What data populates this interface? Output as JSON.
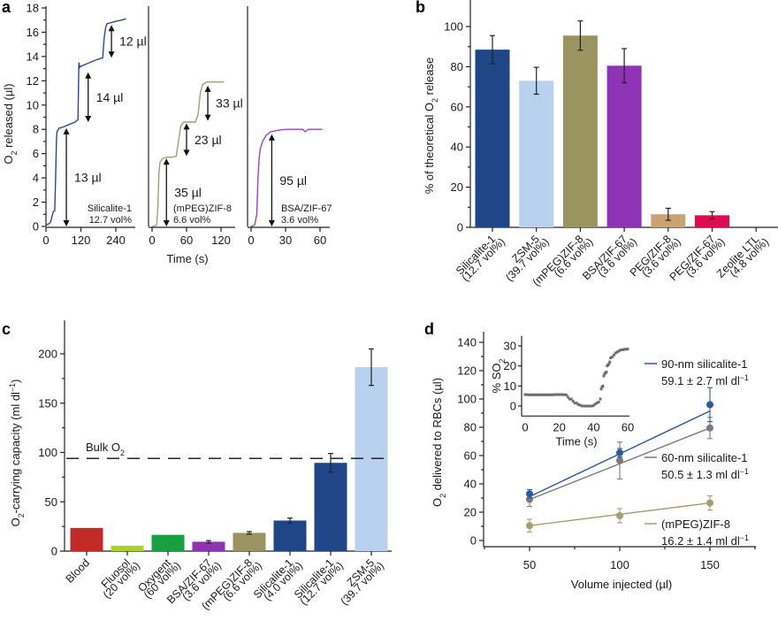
{
  "chart_data": [
    {
      "panel": "a",
      "type": "line",
      "ylabel": "O2 released (µl)",
      "ylabel_main": "O",
      "ylabel_sub": "2",
      "ylabel_rest": " released (µl)",
      "xlabel": "Time (s)",
      "ylim": [
        0,
        18
      ],
      "yticks": [
        0,
        2,
        4,
        6,
        8,
        10,
        12,
        14,
        16,
        18
      ],
      "subplots": [
        {
          "name": "Silicalite-1",
          "label_line1": "Silicalite-1",
          "label_line2": "12.7 vol%",
          "color": "#2b4a8c",
          "xlim": [
            0,
            290
          ],
          "xticks": [
            0,
            120,
            240
          ],
          "x": [
            0,
            15,
            25,
            30,
            33,
            36,
            38,
            45,
            60,
            80,
            100,
            110,
            113,
            116,
            120,
            140,
            170,
            195,
            200,
            205,
            210,
            225,
            240,
            260,
            275
          ],
          "y": [
            0.1,
            0.3,
            1.2,
            1.3,
            4,
            7.2,
            7.8,
            8.1,
            8.2,
            8.4,
            8.6,
            8.8,
            13.5,
            13.1,
            13.2,
            13.4,
            13.7,
            13.9,
            15.5,
            16.4,
            16.7,
            16.8,
            16.9,
            17.0,
            17.1
          ],
          "annotations": [
            {
              "text": "13 µl",
              "from": 0,
              "to": 8.1,
              "x": 70
            },
            {
              "text": "14 µl",
              "from": 8.6,
              "to": 12.7,
              "x": 145
            },
            {
              "text": "12 µl",
              "from": 13.9,
              "to": 16.6,
              "x": 225
            }
          ]
        },
        {
          "name": "(mPEG)ZIF-8",
          "label_line1": "(mPEG)ZIF-8",
          "label_line2": "6.6 vol%",
          "color": "#a49f70",
          "xlim": [
            0,
            150
          ],
          "xticks": [
            0,
            60,
            120
          ],
          "x": [
            0,
            8,
            10,
            12,
            14,
            18,
            25,
            35,
            42,
            46,
            50,
            55,
            65,
            75,
            80,
            84,
            88,
            95,
            110,
            125
          ],
          "y": [
            0,
            0.1,
            1.5,
            4.5,
            5.3,
            5.6,
            5.7,
            5.7,
            5.8,
            7,
            8.3,
            8.6,
            8.6,
            8.6,
            9.2,
            11,
            11.7,
            11.9,
            11.9,
            11.9
          ],
          "annotations": [
            {
              "text": "35 µl",
              "from": 0,
              "to": 5.6,
              "x": 25
            },
            {
              "text": "23 µl",
              "from": 5.8,
              "to": 8.5,
              "x": 60
            },
            {
              "text": "33 µl",
              "from": 8.7,
              "to": 11.6,
              "x": 97
            }
          ]
        },
        {
          "name": "BSA/ZIF-67",
          "label_line1": "BSA/ZIF-67",
          "label_line2": "3.6 vol%",
          "color": "#9b44c4",
          "xlim": [
            0,
            70
          ],
          "xticks": [
            0,
            30,
            60
          ],
          "x": [
            0,
            3,
            5,
            6,
            7,
            8,
            10,
            13,
            17,
            22,
            30,
            40,
            45,
            47,
            50,
            55,
            62
          ],
          "y": [
            0,
            0.1,
            1,
            4,
            5.6,
            6.4,
            7.0,
            7.5,
            7.8,
            7.9,
            8.0,
            8.0,
            8.0,
            7.8,
            8.0,
            8.0,
            8.0
          ],
          "annotations": [
            {
              "text": "95 µl",
              "from": 0,
              "to": 7.6,
              "x": 18
            }
          ]
        }
      ]
    },
    {
      "panel": "b",
      "type": "bar",
      "ylabel_pre": "% of theoretical O",
      "ylabel_sub": "2",
      "ylabel_post": " release",
      "ylim": [
        0,
        110
      ],
      "yticks": [
        0,
        20,
        40,
        60,
        80,
        100
      ],
      "categories": [
        {
          "l1": "Silicalite-1",
          "l2": "(12.7 vol%)"
        },
        {
          "l1": "ZSM-5",
          "l2": "(39.7 vol%)"
        },
        {
          "l1": "(mPEG)ZIF-8",
          "l2": "(6.6 vol%)"
        },
        {
          "l1": "BSA/ZIF-67",
          "l2": "(3.6 vol%)"
        },
        {
          "l1": "PEG/ZIF-8",
          "l2": "(3.6 vol%)"
        },
        {
          "l1": "PEG/ZIF-67",
          "l2": "(3.6 vol%)"
        },
        {
          "l1": "Zeolite LTL",
          "l2": "(4.8 vol%)"
        }
      ],
      "values": [
        88.5,
        73,
        95.5,
        80.5,
        6.5,
        6,
        0
      ],
      "errors": [
        7,
        6.7,
        7.3,
        8.5,
        3,
        1.8,
        0
      ],
      "colors": [
        "#1f4788",
        "#b8d1ee",
        "#9a9460",
        "#8e33b6",
        "#caa273",
        "#dd0c50",
        "#cccccc"
      ]
    },
    {
      "panel": "c",
      "type": "bar",
      "ylabel_pre": "O",
      "ylabel_sub": "2",
      "ylabel_post": "-carrying capacity (ml dl",
      "ylabel_sup": "−1",
      "ylabel_end": ")",
      "ylim": [
        0,
        225
      ],
      "yticks": [
        0,
        50,
        100,
        150,
        200
      ],
      "reference_line": {
        "label": "Bulk O",
        "label_sub": "2",
        "value": 94
      },
      "categories": [
        {
          "l1": "Blood",
          "l2": ""
        },
        {
          "l1": "Fluosol",
          "l2": "(20 vol%)"
        },
        {
          "l1": "Oxygent",
          "l2": "(60 vol%)"
        },
        {
          "l1": "BSA/ZIF-67",
          "l2": "(3.6 vol%)"
        },
        {
          "l1": "(mPEG)ZIF-8",
          "l2": "(6.6 vol%)"
        },
        {
          "l1": "Silicalite-1",
          "l2": "(4.0 vol%)"
        },
        {
          "l1": "Silicalite-1",
          "l2": "(12.7 vol%)"
        },
        {
          "l1": "ZSM-5",
          "l2": "(39.7 vol%)"
        }
      ],
      "values": [
        23.5,
        5.5,
        16.5,
        9.5,
        18.5,
        31,
        89.5,
        186.5
      ],
      "errors": [
        0,
        0,
        0,
        1.2,
        1.3,
        2.5,
        9.5,
        18.5
      ],
      "colors": [
        "#c22a27",
        "#a9d22b",
        "#16a040",
        "#8e33b6",
        "#9a9460",
        "#1f4788",
        "#1f4788",
        "#b8d1ee"
      ]
    },
    {
      "panel": "d",
      "type": "scatter",
      "xlabel": "Volume injected (µl)",
      "ylabel_pre": "O",
      "ylabel_sub": "2",
      "ylabel_post": " delivered to RBCs (µl)",
      "xlim": [
        25,
        175
      ],
      "xticks": [
        50,
        100,
        150
      ],
      "ylim": [
        0,
        145
      ],
      "yticks": [
        0,
        20,
        40,
        60,
        80,
        100,
        120,
        140
      ],
      "series": [
        {
          "name": "90-nm silicalite-1",
          "value_label": "59.1 ± 2.7 ml dl",
          "sup": "−1",
          "color": "#2a5aa0",
          "x": [
            50,
            100,
            150
          ],
          "y": [
            33,
            62,
            96
          ],
          "err": [
            3,
            3,
            12
          ],
          "fit": [
            31,
            91.5
          ]
        },
        {
          "name": "60-nm silicalite-1",
          "value_label": "50.5 ± 1.3 ml dl",
          "sup": "−1",
          "color": "#7a7a7a",
          "x": [
            50,
            100,
            150
          ],
          "y": [
            29,
            56.5,
            79.5
          ],
          "err": [
            5,
            13,
            7.5
          ],
          "fit": [
            29,
            79.5
          ]
        },
        {
          "name": "(mPEG)ZIF-8",
          "value_label": "16.2 ± 1.4 ml dl",
          "sup": "−1",
          "color": "#a49f70",
          "x": [
            50,
            100,
            150
          ],
          "y": [
            10.5,
            17.5,
            26.5
          ],
          "err": [
            4.5,
            5,
            5
          ],
          "fit": [
            10.5,
            26.5
          ]
        }
      ],
      "inset": {
        "type": "scatter",
        "xlabel": "Time (s)",
        "ylabel_pre": "% SO",
        "ylabel_sub": "2",
        "xlim": [
          0,
          60
        ],
        "xticks": [
          0,
          20,
          40,
          60
        ],
        "ylim": [
          -5,
          35
        ],
        "yticks": [
          0,
          10,
          20,
          30
        ],
        "color": "#6e6e6e",
        "x": [
          0,
          1,
          2,
          3,
          4,
          5,
          6,
          7,
          8,
          9,
          10,
          11,
          12,
          13,
          14,
          15,
          16,
          17,
          18,
          19,
          20,
          21,
          22,
          23,
          24,
          25,
          26,
          27,
          28,
          29,
          30,
          31,
          32,
          33,
          34,
          35,
          36,
          37,
          38,
          39,
          40,
          41,
          42,
          43,
          44,
          44.5,
          45,
          45.5,
          46,
          46.5,
          47,
          47.5,
          48,
          48.5,
          49,
          49.5,
          50,
          51,
          52,
          53,
          54,
          55,
          56,
          57,
          58,
          59,
          60
        ],
        "y": [
          5.7,
          5.7,
          5.6,
          5.6,
          5.6,
          5.6,
          5.6,
          5.6,
          5.6,
          5.6,
          5.6,
          5.6,
          5.6,
          5.6,
          5.6,
          5.6,
          5.6,
          5.7,
          5.7,
          5.7,
          5.7,
          5.7,
          5.7,
          5.6,
          5.6,
          4.5,
          3.5,
          3.5,
          2.5,
          1.5,
          1.5,
          0.8,
          0.5,
          0.1,
          0,
          0,
          0,
          0,
          0,
          0,
          0.3,
          1,
          1.5,
          2,
          3.5,
          8.5,
          9.5,
          10,
          15,
          16,
          16.5,
          17,
          20,
          20.5,
          21,
          22,
          24,
          24.5,
          25.5,
          26.5,
          27,
          27.5,
          28,
          28,
          28.3,
          28.3,
          28.4
        ]
      }
    }
  ]
}
